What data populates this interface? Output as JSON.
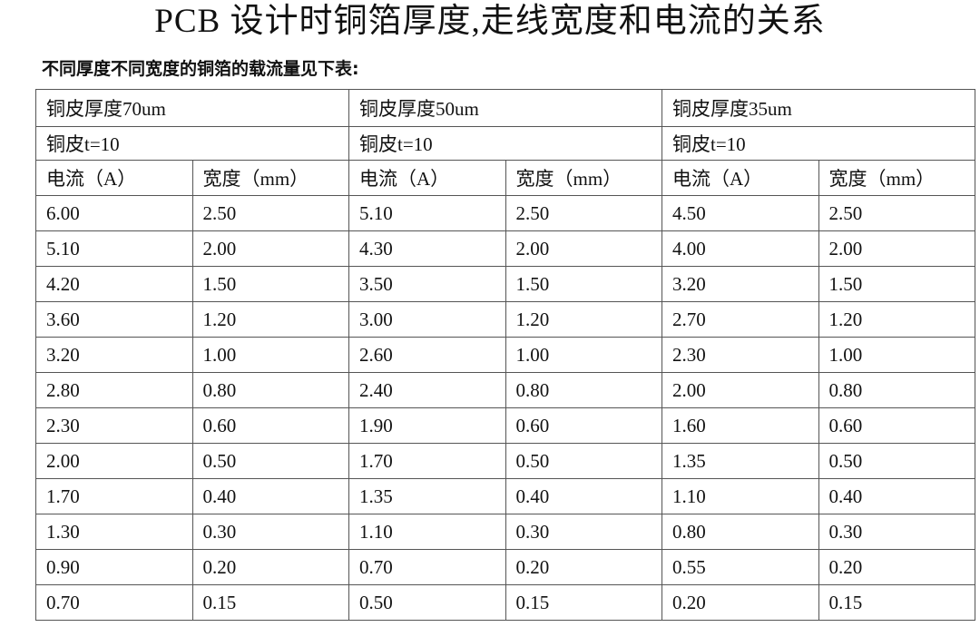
{
  "title": "PCB 设计时铜箔厚度,走线宽度和电流的关系",
  "subtitle": "不同厚度不同宽度的铜箔的载流量见下表:",
  "table": {
    "groups": [
      {
        "thickness": "铜皮厚度70um",
        "t": "铜皮t=10",
        "col_current": "电流（A）",
        "col_width": "宽度（mm）"
      },
      {
        "thickness": "铜皮厚度50um",
        "t": "铜皮t=10",
        "col_current": "电流（A）",
        "col_width": "宽度（mm）"
      },
      {
        "thickness": "铜皮厚度35um",
        "t": "铜皮t=10",
        "col_current": "电流（A）",
        "col_width": "宽度（mm）"
      }
    ],
    "rows": [
      [
        "6.00",
        "2.50",
        "5.10",
        "2.50",
        "4.50",
        "2.50"
      ],
      [
        "5.10",
        "2.00",
        "4.30",
        "2.00",
        "4.00",
        "2.00"
      ],
      [
        "4.20",
        "1.50",
        "3.50",
        "1.50",
        "3.20",
        "1.50"
      ],
      [
        "3.60",
        "1.20",
        "3.00",
        "1.20",
        "2.70",
        "1.20"
      ],
      [
        "3.20",
        "1.00",
        "2.60",
        "1.00",
        "2.30",
        "1.00"
      ],
      [
        "2.80",
        "0.80",
        "2.40",
        "0.80",
        "2.00",
        "0.80"
      ],
      [
        "2.30",
        "0.60",
        "1.90",
        "0.60",
        "1.60",
        "0.60"
      ],
      [
        "2.00",
        "0.50",
        "1.70",
        "0.50",
        "1.35",
        "0.50"
      ],
      [
        "1.70",
        "0.40",
        "1.35",
        "0.40",
        "1.10",
        "0.40"
      ],
      [
        "1.30",
        "0.30",
        "1.10",
        "0.30",
        "0.80",
        "0.30"
      ],
      [
        "0.90",
        "0.20",
        "0.70",
        "0.20",
        "0.55",
        "0.20"
      ],
      [
        "0.70",
        "0.15",
        "0.50",
        "0.15",
        "0.20",
        "0.15"
      ]
    ]
  }
}
